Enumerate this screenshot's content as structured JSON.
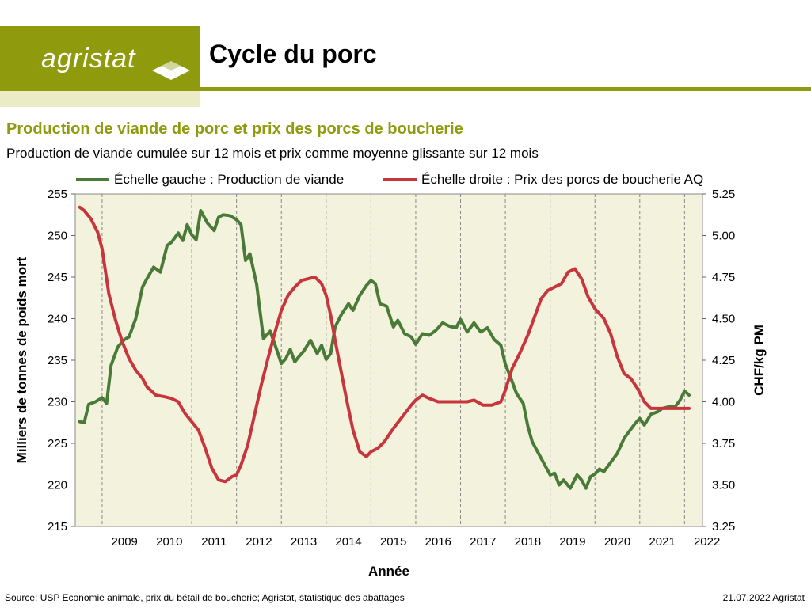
{
  "header": {
    "logo_text": "agristat",
    "title": "Cycle du porc"
  },
  "subtitle": "Production de viande de porc et prix des porcs de boucherie",
  "description": "Production de viande cumulée sur 12 mois et prix comme moyenne glissante sur 12 mois",
  "footer": {
    "source": "Source: USP Economie animale, prix du bétail de boucherie; Agristat, statistique des abattages",
    "date": "21.07.2022 Agristat"
  },
  "colors": {
    "brand": "#8f9a0d",
    "plot_bg": "#f3f3dd",
    "production": "#4a7a38",
    "price": "#c8363d"
  },
  "chart_data": {
    "type": "line",
    "xlabel": "Année",
    "ylabel_left": "Milliers de tonnes de poids mort",
    "ylabel_right": "CHF/kg PM",
    "categories": [
      "2009",
      "2010",
      "2011",
      "2012",
      "2013",
      "2014",
      "2015",
      "2016",
      "2017",
      "2018",
      "2019",
      "2020",
      "2021",
      "2022"
    ],
    "ylim_left": [
      215,
      255
    ],
    "ylim_right": [
      3.25,
      5.25
    ],
    "yticks_left": [
      "215",
      "220",
      "225",
      "230",
      "235",
      "240",
      "245",
      "250",
      "255"
    ],
    "yticks_right": [
      "3.25",
      "3.50",
      "3.75",
      "4.00",
      "4.25",
      "4.50",
      "4.75",
      "5.00",
      "5.25"
    ],
    "grid": "vertical dashed",
    "legend": "top",
    "series": [
      {
        "name": "Échelle gauche : Production de viande",
        "axis": "left",
        "x": [
          2008.5,
          2008.6,
          2008.7,
          2008.85,
          2009.0,
          2009.1,
          2009.2,
          2009.35,
          2009.5,
          2009.6,
          2009.75,
          2009.9,
          2010.0,
          2010.15,
          2010.3,
          2010.45,
          2010.55,
          2010.7,
          2010.8,
          2010.9,
          2011.0,
          2011.1,
          2011.2,
          2011.35,
          2011.5,
          2011.6,
          2011.7,
          2011.85,
          2012.0,
          2012.1,
          2012.2,
          2012.3,
          2012.45,
          2012.6,
          2012.75,
          2012.9,
          2013.0,
          2013.1,
          2013.2,
          2013.3,
          2013.4,
          2013.5,
          2013.65,
          2013.8,
          2013.9,
          2014.0,
          2014.1,
          2014.2,
          2014.35,
          2014.5,
          2014.6,
          2014.75,
          2014.9,
          2015.0,
          2015.1,
          2015.2,
          2015.35,
          2015.5,
          2015.6,
          2015.75,
          2015.9,
          2016.0,
          2016.15,
          2016.3,
          2016.45,
          2016.6,
          2016.75,
          2016.9,
          2017.0,
          2017.15,
          2017.3,
          2017.45,
          2017.6,
          2017.75,
          2017.9,
          2018.0,
          2018.1,
          2018.25,
          2018.4,
          2018.5,
          2018.6,
          2018.75,
          2018.9,
          2019.0,
          2019.1,
          2019.2,
          2019.3,
          2019.45,
          2019.6,
          2019.7,
          2019.8,
          2019.9,
          2020.0,
          2020.1,
          2020.2,
          2020.35,
          2020.5,
          2020.65,
          2020.8,
          2020.9,
          2021.0,
          2021.1,
          2021.25,
          2021.4,
          2021.5,
          2021.65,
          2021.8,
          2021.9,
          2022.0,
          2022.1
        ],
        "values": [
          227.6,
          227.5,
          229.7,
          230.0,
          230.5,
          229.8,
          234.4,
          236.6,
          237.5,
          237.8,
          240.0,
          243.8,
          244.8,
          246.2,
          245.6,
          248.8,
          249.2,
          250.3,
          249.4,
          251.3,
          250.1,
          249.5,
          253.0,
          251.5,
          250.6,
          252.2,
          252.5,
          252.4,
          251.9,
          251.3,
          247.0,
          247.8,
          244.1,
          237.6,
          238.5,
          236.2,
          234.6,
          235.2,
          236.3,
          234.8,
          235.5,
          236.1,
          237.4,
          235.8,
          236.8,
          235.1,
          235.8,
          239.0,
          240.6,
          241.8,
          241.0,
          242.8,
          244.0,
          244.6,
          244.2,
          241.8,
          241.5,
          239.0,
          239.8,
          238.2,
          237.8,
          236.9,
          238.2,
          238.0,
          238.6,
          239.5,
          239.1,
          238.9,
          239.9,
          238.4,
          239.5,
          238.4,
          238.9,
          237.5,
          236.8,
          234.5,
          233.2,
          231.0,
          229.8,
          227.1,
          225.2,
          223.7,
          222.2,
          221.2,
          221.4,
          220.0,
          220.6,
          219.6,
          221.2,
          220.6,
          219.6,
          221.0,
          221.3,
          221.9,
          221.6,
          222.7,
          223.8,
          225.6,
          226.7,
          227.4,
          228.0,
          227.2,
          228.5,
          228.8,
          229.2,
          229.4,
          229.5,
          230.2,
          231.3,
          230.8
        ]
      },
      {
        "name": "Échelle droite : Prix des porcs de boucherie AQ",
        "axis": "right",
        "x": [
          2008.5,
          2008.6,
          2008.75,
          2008.9,
          2009.0,
          2009.15,
          2009.3,
          2009.45,
          2009.6,
          2009.75,
          2009.9,
          2010.0,
          2010.2,
          2010.4,
          2010.55,
          2010.7,
          2010.85,
          2011.0,
          2011.15,
          2011.3,
          2011.45,
          2011.6,
          2011.75,
          2011.9,
          2012.0,
          2012.1,
          2012.25,
          2012.4,
          2012.55,
          2012.7,
          2012.85,
          2013.0,
          2013.15,
          2013.3,
          2013.45,
          2013.6,
          2013.75,
          2013.9,
          2014.0,
          2014.1,
          2014.2,
          2014.3,
          2014.45,
          2014.6,
          2014.75,
          2014.9,
          2015.0,
          2015.15,
          2015.3,
          2015.5,
          2015.7,
          2015.9,
          2016.0,
          2016.15,
          2016.3,
          2016.5,
          2016.7,
          2016.9,
          2017.0,
          2017.15,
          2017.3,
          2017.5,
          2017.7,
          2017.9,
          2018.0,
          2018.15,
          2018.3,
          2018.5,
          2018.65,
          2018.8,
          2018.95,
          2019.1,
          2019.25,
          2019.4,
          2019.55,
          2019.7,
          2019.85,
          2020.0,
          2020.2,
          2020.35,
          2020.5,
          2020.65,
          2020.8,
          2020.95,
          2021.1,
          2021.25,
          2021.4,
          2021.55,
          2021.7,
          2021.85,
          2022.0,
          2022.1
        ],
        "values": [
          5.17,
          5.15,
          5.1,
          5.02,
          4.92,
          4.65,
          4.49,
          4.36,
          4.26,
          4.19,
          4.14,
          4.09,
          4.04,
          4.03,
          4.02,
          4.0,
          3.93,
          3.88,
          3.83,
          3.72,
          3.6,
          3.53,
          3.52,
          3.55,
          3.56,
          3.62,
          3.74,
          3.92,
          4.1,
          4.26,
          4.41,
          4.55,
          4.64,
          4.69,
          4.73,
          4.74,
          4.75,
          4.71,
          4.64,
          4.52,
          4.37,
          4.23,
          4.02,
          3.83,
          3.7,
          3.67,
          3.7,
          3.72,
          3.76,
          3.84,
          3.91,
          3.98,
          4.01,
          4.04,
          4.02,
          4.0,
          4.0,
          4.0,
          4.0,
          4.0,
          4.01,
          3.98,
          3.98,
          4.0,
          4.07,
          4.2,
          4.28,
          4.4,
          4.51,
          4.62,
          4.67,
          4.69,
          4.71,
          4.78,
          4.8,
          4.74,
          4.63,
          4.56,
          4.5,
          4.41,
          4.27,
          4.17,
          4.14,
          4.08,
          4.0,
          3.96,
          3.96,
          3.96,
          3.96,
          3.96,
          3.96,
          3.96
        ]
      }
    ]
  }
}
